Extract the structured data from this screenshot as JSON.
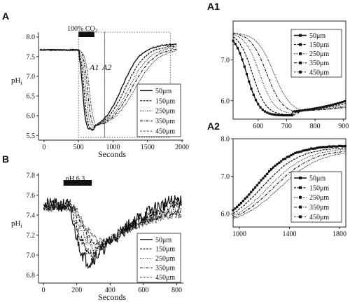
{
  "chart_data": [
    {
      "id": "A",
      "panel_label": "A",
      "type": "line",
      "xlabel": "Seconds",
      "ylabel": "pHi",
      "xlim": [
        -80,
        2020
      ],
      "ylim": [
        5.38,
        8.12
      ],
      "xticks": [
        0,
        500,
        1000,
        1500,
        2000
      ],
      "yticks": [
        5.5,
        6.0,
        6.5,
        7.0,
        7.5,
        8.0
      ],
      "stimulus": {
        "label": "100% CO2",
        "start": 500,
        "end": 730
      },
      "annotations": [
        {
          "text": "A1",
          "x": 650,
          "y": 7.1
        },
        {
          "text": "A2",
          "x": 1000,
          "y": 7.1
        }
      ],
      "legend_position": "bottom-right",
      "series": [
        {
          "name": "50μm",
          "baseline": 7.67,
          "drop_start": 505,
          "t_half_down": 560,
          "k_down": 22,
          "nadir": 5.62,
          "nadir_time": 780,
          "t_half_up": 1130,
          "k_up": 140,
          "recovery_top": 7.82,
          "noise": 0.035,
          "dash": "",
          "width": 1.4
        },
        {
          "name": "150μm",
          "baseline": 7.67,
          "drop_start": 505,
          "t_half_down": 580,
          "k_down": 24,
          "nadir": 5.63,
          "nadir_time": 790,
          "t_half_up": 1180,
          "k_up": 150,
          "recovery_top": 7.78,
          "noise": 0.03,
          "dash": "3,1.5",
          "width": 1.2
        },
        {
          "name": "250μm",
          "baseline": 7.67,
          "drop_start": 505,
          "t_half_down": 605,
          "k_down": 26,
          "nadir": 5.65,
          "nadir_time": 800,
          "t_half_up": 1230,
          "k_up": 155,
          "recovery_top": 7.75,
          "noise": 0.03,
          "dash": "1,1.5",
          "width": 1.1
        },
        {
          "name": "350μm",
          "baseline": 7.67,
          "drop_start": 505,
          "t_half_down": 630,
          "k_down": 28,
          "nadir": 5.66,
          "nadir_time": 810,
          "t_half_up": 1270,
          "k_up": 160,
          "recovery_top": 7.72,
          "noise": 0.03,
          "dash": "4,1.5,1,1.5",
          "width": 1.1
        },
        {
          "name": "450μm",
          "baseline": 7.67,
          "drop_start": 505,
          "t_half_down": 655,
          "k_down": 30,
          "nadir": 5.68,
          "nadir_time": 820,
          "t_half_up": 1320,
          "k_up": 165,
          "recovery_top": 7.7,
          "noise": 0.03,
          "dash": "1,1",
          "width": 1.0
        }
      ]
    },
    {
      "id": "A1",
      "panel_label": "A1",
      "type": "scatter-line",
      "xlabel": "",
      "ylabel": "",
      "xlim": [
        512,
        908
      ],
      "ylim": [
        5.55,
        7.95
      ],
      "xticks": [
        600,
        700,
        800,
        900
      ],
      "yticks": [
        6.0,
        7.0
      ],
      "legend_position": "top-right",
      "series": [
        {
          "name": "50μm"
        },
        {
          "name": "150μm"
        },
        {
          "name": "250μm"
        },
        {
          "name": "350μm"
        },
        {
          "name": "450μm"
        }
      ]
    },
    {
      "id": "A2",
      "panel_label": "A2",
      "type": "scatter-line",
      "xlabel": "",
      "ylabel": "",
      "xlim": [
        950,
        1850
      ],
      "ylim": [
        5.65,
        8.0
      ],
      "xticks": [
        1000,
        1400,
        1800
      ],
      "yticks": [
        6.0,
        7.0,
        8.0
      ],
      "legend_position": "bottom-right",
      "series": [
        {
          "name": "50μm"
        },
        {
          "name": "150μm"
        },
        {
          "name": "250μm"
        },
        {
          "name": "350μm"
        },
        {
          "name": "450μm"
        }
      ]
    },
    {
      "id": "B",
      "panel_label": "B",
      "type": "line",
      "xlabel": "Seconds",
      "ylabel": "pHi",
      "xlim": [
        -30,
        840
      ],
      "ylim": [
        6.72,
        7.82
      ],
      "xticks": [
        0,
        200,
        400,
        600,
        800
      ],
      "yticks": [
        6.8,
        7.0,
        7.2,
        7.4,
        7.6,
        7.8
      ],
      "stimulus": {
        "label": "pH 6.3",
        "start": 120,
        "end": 290
      },
      "legend_position": "bottom-right",
      "series": [
        {
          "name": "50μm",
          "baseline": 7.5,
          "drop_start": 150,
          "nadir": 6.93,
          "nadir_time": 280,
          "recovery_top": 7.55,
          "recovery_end": 830,
          "noise": 0.07,
          "dash": "",
          "width": 1.2
        },
        {
          "name": "150μm",
          "baseline": 7.5,
          "drop_start": 160,
          "nadir": 7.0,
          "nadir_time": 300,
          "recovery_top": 7.5,
          "recovery_end": 830,
          "noise": 0.05,
          "dash": "3,1.5",
          "width": 1.1
        },
        {
          "name": "250μm",
          "baseline": 7.48,
          "drop_start": 170,
          "nadir": 7.06,
          "nadir_time": 320,
          "recovery_top": 7.45,
          "recovery_end": 830,
          "noise": 0.04,
          "dash": "1,1.5",
          "width": 1.0
        },
        {
          "name": "350μm",
          "baseline": 7.48,
          "drop_start": 180,
          "nadir": 7.1,
          "nadir_time": 340,
          "recovery_top": 7.43,
          "recovery_end": 830,
          "noise": 0.04,
          "dash": "4,1.5,1,1.5",
          "width": 1.0
        },
        {
          "name": "450μm",
          "baseline": 7.47,
          "drop_start": 190,
          "nadir": 7.13,
          "nadir_time": 360,
          "recovery_top": 7.4,
          "recovery_end": 830,
          "noise": 0.035,
          "dash": "1,1",
          "width": 1.0
        }
      ]
    }
  ]
}
